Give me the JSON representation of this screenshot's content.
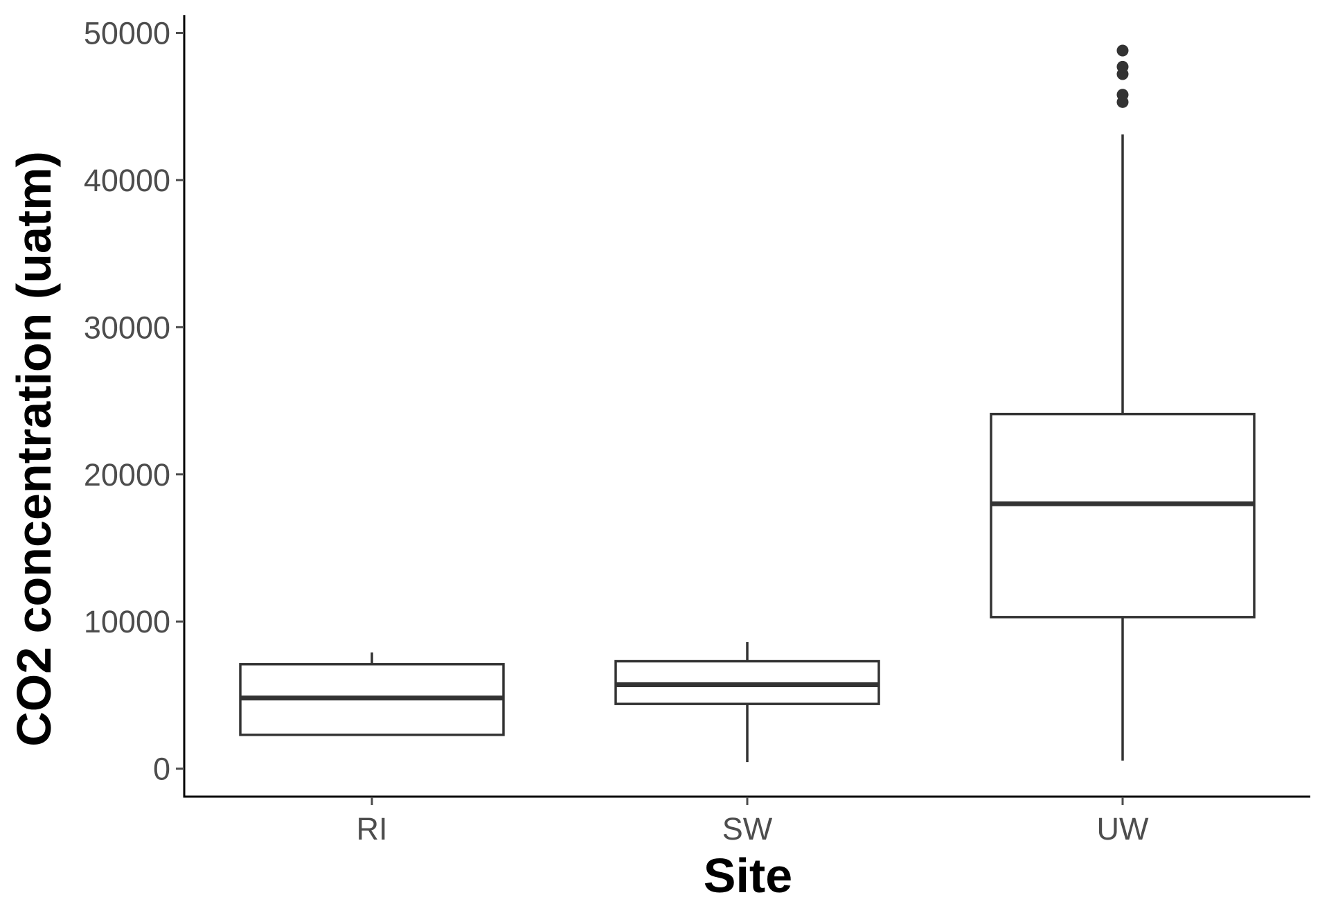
{
  "chart_data": {
    "type": "boxplot",
    "xlabel": "Site",
    "ylabel": "CO2 concentration (uatm)",
    "categories": [
      "RI",
      "SW",
      "UW"
    ],
    "y_ticks": [
      0,
      10000,
      20000,
      30000,
      40000,
      50000
    ],
    "ylim": [
      -1900,
      51200
    ],
    "grid": false,
    "legend": "none",
    "boxes": [
      {
        "category": "RI",
        "whisker_low": 2300,
        "q1": 2300,
        "median": 4800,
        "q3": 7100,
        "whisker_high": 7900,
        "outliers": []
      },
      {
        "category": "SW",
        "whisker_low": 450,
        "q1": 4400,
        "median": 5700,
        "q3": 7300,
        "whisker_high": 8600,
        "outliers": []
      },
      {
        "category": "UW",
        "whisker_low": 550,
        "q1": 10300,
        "median": 18000,
        "q3": 24100,
        "whisker_high": 43100,
        "outliers": [
          45300,
          45800,
          47200,
          47700,
          48800
        ]
      }
    ],
    "colors": {
      "box_stroke": "#333333",
      "box_fill": "#ffffff",
      "axis": "#000000",
      "tick_text": "#4d4d4d"
    }
  }
}
